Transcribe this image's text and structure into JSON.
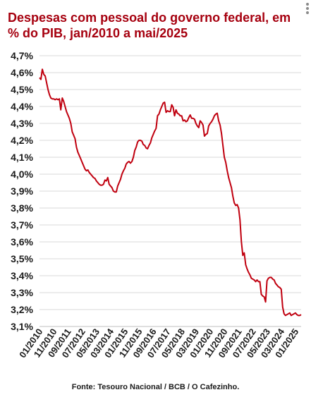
{
  "title": "Despesas com pessoal do governo federal, em % do PIB, jan/2010 a mai/2025",
  "source": "Fonte: Tesouro Nacional / BCB / O Cafezinho.",
  "menu_icon": "more-vertical-icon",
  "colors": {
    "title": "#a6000f",
    "line": "#c0000f",
    "grid": "#d9d9d9",
    "text": "#1a1a1a"
  },
  "chart_data": {
    "type": "line",
    "title": "Despesas com pessoal do governo federal, em % do PIB, jan/2010 a mai/2025",
    "xlabel": "",
    "ylabel": "",
    "x_range": [
      "2010-01",
      "2025-05"
    ],
    "ylim": [
      3.1,
      4.7
    ],
    "grid": "horizontal",
    "y_ticks": [
      "3,1%",
      "3,2%",
      "3,3%",
      "3,4%",
      "3,5%",
      "3,6%",
      "3,7%",
      "3,8%",
      "3,9%",
      "4,0%",
      "4,1%",
      "4,2%",
      "4,3%",
      "4,4%",
      "4,5%",
      "4,6%",
      "4,7%"
    ],
    "x_ticks": [
      "01/2010",
      "11/2010",
      "09/2011",
      "07/2012",
      "05/2013",
      "03/2014",
      "01/2015",
      "11/2015",
      "09/2016",
      "07/2017",
      "05/2018",
      "03/2019",
      "01/2020",
      "11/2020",
      "09/2021",
      "07/2022",
      "05/2023",
      "03/2024",
      "01/2025"
    ],
    "series": [
      {
        "values": [
          [
            "2010-01",
            4.57
          ],
          [
            "2010-02",
            4.56
          ],
          [
            "2010-03",
            4.62
          ],
          [
            "2010-04",
            4.59
          ],
          [
            "2010-05",
            4.58
          ],
          [
            "2010-06",
            4.54
          ],
          [
            "2010-07",
            4.5
          ],
          [
            "2010-08",
            4.47
          ],
          [
            "2010-09",
            4.45
          ],
          [
            "2010-10",
            4.445
          ],
          [
            "2010-11",
            4.445
          ],
          [
            "2010-12",
            4.44
          ],
          [
            "2011-01",
            4.445
          ],
          [
            "2011-02",
            4.44
          ],
          [
            "2011-03",
            4.445
          ],
          [
            "2011-04",
            4.38
          ],
          [
            "2011-05",
            4.45
          ],
          [
            "2011-06",
            4.43
          ],
          [
            "2011-07",
            4.4
          ],
          [
            "2011-08",
            4.37
          ],
          [
            "2011-09",
            4.35
          ],
          [
            "2011-10",
            4.33
          ],
          [
            "2011-11",
            4.3
          ],
          [
            "2011-12",
            4.25
          ],
          [
            "2012-01",
            4.23
          ],
          [
            "2012-02",
            4.21
          ],
          [
            "2012-03",
            4.16
          ],
          [
            "2012-04",
            4.13
          ],
          [
            "2012-05",
            4.11
          ],
          [
            "2012-06",
            4.09
          ],
          [
            "2012-07",
            4.07
          ],
          [
            "2012-08",
            4.05
          ],
          [
            "2012-09",
            4.03
          ],
          [
            "2012-10",
            4.02
          ],
          [
            "2012-11",
            4.025
          ],
          [
            "2012-12",
            4.01
          ],
          [
            "2013-01",
            4.0
          ],
          [
            "2013-02",
            3.99
          ],
          [
            "2013-03",
            3.98
          ],
          [
            "2013-04",
            3.975
          ],
          [
            "2013-05",
            3.96
          ],
          [
            "2013-06",
            3.95
          ],
          [
            "2013-07",
            3.94
          ],
          [
            "2013-08",
            3.935
          ],
          [
            "2013-09",
            3.935
          ],
          [
            "2013-10",
            3.94
          ],
          [
            "2013-11",
            3.965
          ],
          [
            "2013-12",
            3.96
          ],
          [
            "2014-01",
            3.98
          ],
          [
            "2014-02",
            3.94
          ],
          [
            "2014-03",
            3.93
          ],
          [
            "2014-04",
            3.92
          ],
          [
            "2014-05",
            3.9
          ],
          [
            "2014-06",
            3.895
          ],
          [
            "2014-07",
            3.895
          ],
          [
            "2014-08",
            3.93
          ],
          [
            "2014-09",
            3.95
          ],
          [
            "2014-10",
            3.97
          ],
          [
            "2014-11",
            4.0
          ],
          [
            "2014-12",
            4.02
          ],
          [
            "2015-01",
            4.035
          ],
          [
            "2015-02",
            4.06
          ],
          [
            "2015-03",
            4.07
          ],
          [
            "2015-04",
            4.075
          ],
          [
            "2015-05",
            4.065
          ],
          [
            "2015-06",
            4.075
          ],
          [
            "2015-07",
            4.1
          ],
          [
            "2015-08",
            4.14
          ],
          [
            "2015-09",
            4.16
          ],
          [
            "2015-10",
            4.19
          ],
          [
            "2015-11",
            4.2
          ],
          [
            "2015-12",
            4.2
          ],
          [
            "2016-01",
            4.195
          ],
          [
            "2016-02",
            4.175
          ],
          [
            "2016-03",
            4.17
          ],
          [
            "2016-04",
            4.155
          ],
          [
            "2016-05",
            4.15
          ],
          [
            "2016-06",
            4.17
          ],
          [
            "2016-07",
            4.185
          ],
          [
            "2016-08",
            4.215
          ],
          [
            "2016-09",
            4.235
          ],
          [
            "2016-10",
            4.255
          ],
          [
            "2016-11",
            4.27
          ],
          [
            "2016-12",
            4.345
          ],
          [
            "2017-01",
            4.355
          ],
          [
            "2017-02",
            4.38
          ],
          [
            "2017-03",
            4.4
          ],
          [
            "2017-04",
            4.42
          ],
          [
            "2017-05",
            4.425
          ],
          [
            "2017-06",
            4.365
          ],
          [
            "2017-07",
            4.375
          ],
          [
            "2017-08",
            4.37
          ],
          [
            "2017-09",
            4.37
          ],
          [
            "2017-10",
            4.41
          ],
          [
            "2017-11",
            4.395
          ],
          [
            "2017-12",
            4.345
          ],
          [
            "2018-01",
            4.38
          ],
          [
            "2018-02",
            4.36
          ],
          [
            "2018-03",
            4.355
          ],
          [
            "2018-04",
            4.345
          ],
          [
            "2018-05",
            4.345
          ],
          [
            "2018-06",
            4.315
          ],
          [
            "2018-07",
            4.32
          ],
          [
            "2018-08",
            4.31
          ],
          [
            "2018-09",
            4.315
          ],
          [
            "2018-10",
            4.335
          ],
          [
            "2018-11",
            4.35
          ],
          [
            "2018-12",
            4.33
          ],
          [
            "2019-01",
            4.33
          ],
          [
            "2019-02",
            4.325
          ],
          [
            "2019-03",
            4.3
          ],
          [
            "2019-04",
            4.285
          ],
          [
            "2019-05",
            4.275
          ],
          [
            "2019-06",
            4.315
          ],
          [
            "2019-07",
            4.305
          ],
          [
            "2019-08",
            4.29
          ],
          [
            "2019-09",
            4.225
          ],
          [
            "2019-10",
            4.235
          ],
          [
            "2019-11",
            4.24
          ],
          [
            "2019-12",
            4.285
          ],
          [
            "2020-01",
            4.3
          ],
          [
            "2020-02",
            4.31
          ],
          [
            "2020-03",
            4.325
          ],
          [
            "2020-04",
            4.345
          ],
          [
            "2020-05",
            4.355
          ],
          [
            "2020-06",
            4.36
          ],
          [
            "2020-07",
            4.315
          ],
          [
            "2020-08",
            4.29
          ],
          [
            "2020-09",
            4.24
          ],
          [
            "2020-10",
            4.17
          ],
          [
            "2020-11",
            4.1
          ],
          [
            "2020-12",
            4.07
          ],
          [
            "2021-01",
            4.02
          ],
          [
            "2021-02",
            3.98
          ],
          [
            "2021-03",
            3.95
          ],
          [
            "2021-04",
            3.92
          ],
          [
            "2021-05",
            3.87
          ],
          [
            "2021-06",
            3.83
          ],
          [
            "2021-07",
            3.815
          ],
          [
            "2021-08",
            3.82
          ],
          [
            "2021-09",
            3.8
          ],
          [
            "2021-10",
            3.73
          ],
          [
            "2021-11",
            3.6
          ],
          [
            "2021-12",
            3.52
          ],
          [
            "2022-01",
            3.535
          ],
          [
            "2022-02",
            3.465
          ],
          [
            "2022-03",
            3.44
          ],
          [
            "2022-04",
            3.42
          ],
          [
            "2022-05",
            3.405
          ],
          [
            "2022-06",
            3.385
          ],
          [
            "2022-07",
            3.38
          ],
          [
            "2022-08",
            3.375
          ],
          [
            "2022-09",
            3.365
          ],
          [
            "2022-10",
            3.375
          ],
          [
            "2022-11",
            3.365
          ],
          [
            "2022-12",
            3.365
          ],
          [
            "2023-01",
            3.29
          ],
          [
            "2023-02",
            3.28
          ],
          [
            "2023-03",
            3.275
          ],
          [
            "2023-04",
            3.245
          ],
          [
            "2023-05",
            3.37
          ],
          [
            "2023-06",
            3.385
          ],
          [
            "2023-07",
            3.39
          ],
          [
            "2023-08",
            3.39
          ],
          [
            "2023-09",
            3.38
          ],
          [
            "2023-10",
            3.375
          ],
          [
            "2023-11",
            3.355
          ],
          [
            "2023-12",
            3.345
          ],
          [
            "2024-01",
            3.335
          ],
          [
            "2024-02",
            3.33
          ],
          [
            "2024-03",
            3.32
          ],
          [
            "2024-04",
            3.215
          ],
          [
            "2024-05",
            3.175
          ],
          [
            "2024-06",
            3.165
          ],
          [
            "2024-07",
            3.17
          ],
          [
            "2024-08",
            3.175
          ],
          [
            "2024-09",
            3.18
          ],
          [
            "2024-10",
            3.165
          ],
          [
            "2024-11",
            3.17
          ],
          [
            "2024-12",
            3.175
          ],
          [
            "2025-01",
            3.18
          ],
          [
            "2025-02",
            3.17
          ],
          [
            "2025-03",
            3.165
          ],
          [
            "2025-04",
            3.165
          ],
          [
            "2025-05",
            3.17
          ]
        ]
      }
    ]
  }
}
